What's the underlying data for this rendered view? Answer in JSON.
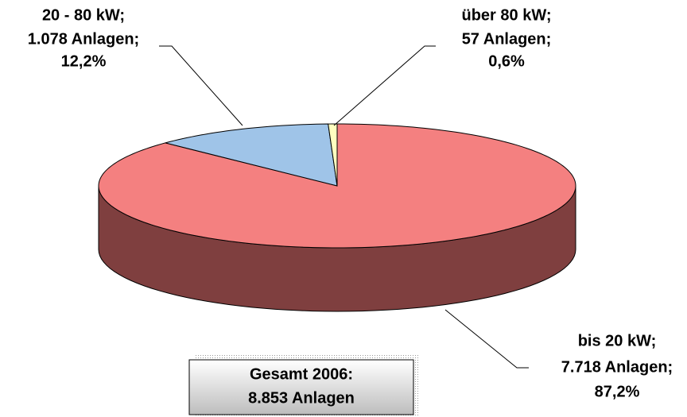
{
  "chart_data": {
    "type": "pie3d",
    "categories": [
      "bis 20 kW;",
      "20 - 80 kW;",
      "über 80 kW;"
    ],
    "count_labels": [
      "7.718 Anlagen;",
      "1.078 Anlagen;",
      "57 Anlagen;"
    ],
    "values": [
      87.2,
      12.2,
      0.6
    ],
    "value_labels": [
      "87,2%",
      "12,2%",
      "0,6%"
    ],
    "colors": [
      "#f48080",
      "#9fc4e8",
      "#ffffc0"
    ],
    "side_colors": [
      "#7f3f3f",
      "#4f6f8f",
      "#8f8f5f"
    ],
    "annotation": [
      "Gesamt 2006:",
      "8.853 Anlagen"
    ]
  }
}
